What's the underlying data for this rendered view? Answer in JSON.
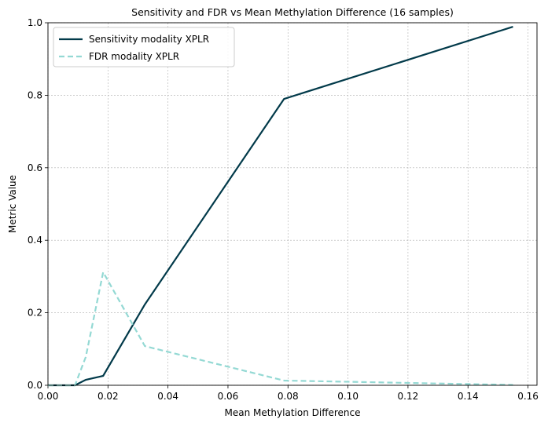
{
  "chart_data": {
    "type": "line",
    "title": "Sensitivity and FDR vs Mean Methylation Difference (16 samples)",
    "x_label": "Mean Methylation Difference",
    "y_label": "Metric Value",
    "x": [
      0,
      0.004,
      0.009,
      0.0126,
      0.0184,
      0.0323,
      0.0787,
      0.155
    ],
    "series": [
      {
        "name": "Sensitivity modality XPLR",
        "color": "#023a4a",
        "dash": false,
        "values": [
          0,
          0,
          0,
          0.015,
          0.026,
          0.223,
          0.79,
          0.989
        ]
      },
      {
        "name": "FDR modality XPLR",
        "color": "#94d9d4",
        "dash": true,
        "values": [
          0,
          0,
          0,
          0.078,
          0.312,
          0.108,
          0.013,
          0.001
        ]
      }
    ],
    "xlim": [
      0,
      0.163
    ],
    "ylim": [
      0,
      1.0
    ],
    "xticks": [
      {
        "value": 0,
        "label": "0.00"
      },
      0.02,
      0.04,
      0.06,
      0.08,
      {
        "value": 0.1,
        "label": "0.10"
      },
      0.12,
      0.14,
      0.16
    ],
    "yticks": [
      {
        "value": 0,
        "label": "0.0"
      },
      0.2,
      0.4,
      0.6,
      0.8,
      {
        "value": 1,
        "label": "1.0"
      }
    ],
    "grid": true,
    "legend": "upper-left"
  }
}
